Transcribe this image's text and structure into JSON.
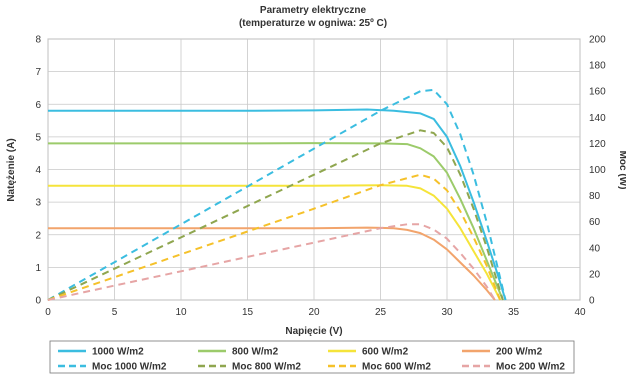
{
  "chart_data": {
    "type": "line",
    "title": "Parametry elektryczne",
    "subtitle": "(temperaturze w ogniwa: 25º C)",
    "xlabel": "Napięcie (V)",
    "ylabel_left": "Natężenie (A)",
    "ylabel_right": "Moc (W)",
    "xlim": [
      0,
      40
    ],
    "ylim_left": [
      0,
      8
    ],
    "ylim_right": [
      0,
      200
    ],
    "xticks": [
      "0",
      "5",
      "10",
      "15",
      "20",
      "25",
      "30",
      "35",
      "40"
    ],
    "yticks_left": [
      "0",
      "1",
      "2",
      "3",
      "4",
      "5",
      "6",
      "7",
      "8"
    ],
    "yticks_right": [
      "0",
      "20",
      "40",
      "60",
      "80",
      "100",
      "120",
      "140",
      "160",
      "180",
      "200"
    ],
    "grid": true,
    "legend_position": "bottom",
    "series": [
      {
        "name": "1000 W/m2",
        "axis": "left",
        "style": "solid",
        "color": "#3bbde0",
        "x": [
          0,
          5,
          10,
          15,
          20,
          24,
          26,
          28,
          29,
          30,
          31,
          32,
          33,
          33.8,
          34.4
        ],
        "y": [
          5.8,
          5.8,
          5.8,
          5.8,
          5.81,
          5.84,
          5.8,
          5.72,
          5.55,
          5.0,
          4.1,
          3.0,
          1.8,
          0.8,
          0
        ]
      },
      {
        "name": "800 W/m2",
        "axis": "left",
        "style": "solid",
        "color": "#9ccb6b",
        "x": [
          0,
          5,
          10,
          15,
          20,
          25,
          27,
          28,
          29,
          30,
          31,
          32,
          33,
          33.7,
          34.2
        ],
        "y": [
          4.8,
          4.8,
          4.8,
          4.8,
          4.81,
          4.8,
          4.78,
          4.65,
          4.4,
          3.9,
          3.1,
          2.2,
          1.2,
          0.5,
          0
        ]
      },
      {
        "name": "600 W/m2",
        "axis": "left",
        "style": "solid",
        "color": "#f5e43a",
        "x": [
          0,
          5,
          10,
          15,
          20,
          25,
          27,
          28,
          29,
          30,
          31,
          32,
          33,
          33.5,
          34.0
        ],
        "y": [
          3.5,
          3.5,
          3.5,
          3.5,
          3.5,
          3.52,
          3.5,
          3.42,
          3.2,
          2.8,
          2.2,
          1.5,
          0.8,
          0.4,
          0
        ]
      },
      {
        "name": "200 W/m2",
        "axis": "left",
        "style": "solid",
        "color": "#f2a46c",
        "x": [
          0,
          5,
          10,
          15,
          20,
          24,
          26,
          27,
          28,
          29,
          30,
          31,
          32,
          33,
          33.6
        ],
        "y": [
          2.2,
          2.2,
          2.2,
          2.2,
          2.2,
          2.22,
          2.2,
          2.15,
          2.05,
          1.85,
          1.55,
          1.15,
          0.75,
          0.3,
          0
        ]
      },
      {
        "name": "Moc 1000 W/m2",
        "axis": "right",
        "style": "dashed",
        "color": "#3bbde0",
        "x": [
          0,
          5,
          10,
          15,
          20,
          25,
          28,
          29,
          30,
          31,
          32,
          33,
          34.4
        ],
        "y": [
          0,
          29,
          58,
          87,
          116,
          145,
          160,
          161,
          150,
          127,
          96,
          59,
          0
        ]
      },
      {
        "name": "Moc 800 W/m2",
        "axis": "right",
        "style": "dashed",
        "color": "#8fa64f",
        "x": [
          0,
          5,
          10,
          15,
          20,
          25,
          28,
          29,
          30,
          31,
          32,
          33,
          34.2
        ],
        "y": [
          0,
          24,
          48,
          72,
          96,
          120,
          130,
          128,
          117,
          96,
          70,
          40,
          0
        ]
      },
      {
        "name": "Moc 600 W/m2",
        "axis": "right",
        "style": "dashed",
        "color": "#f5c12a",
        "x": [
          0,
          5,
          10,
          15,
          20,
          25,
          28,
          29,
          30,
          31,
          32,
          33,
          34.0
        ],
        "y": [
          0,
          17.5,
          35,
          52.5,
          70,
          88,
          96,
          93,
          84,
          68,
          48,
          26,
          0
        ]
      },
      {
        "name": "Moc 200 W/m2",
        "axis": "right",
        "style": "dashed",
        "color": "#e6a5a5",
        "x": [
          0,
          5,
          10,
          15,
          20,
          25,
          27,
          28,
          29,
          30,
          31,
          32,
          33,
          33.6
        ],
        "y": [
          0,
          11,
          22,
          33,
          44,
          55,
          58,
          58,
          54,
          47,
          36,
          24,
          10,
          0
        ]
      }
    ]
  }
}
